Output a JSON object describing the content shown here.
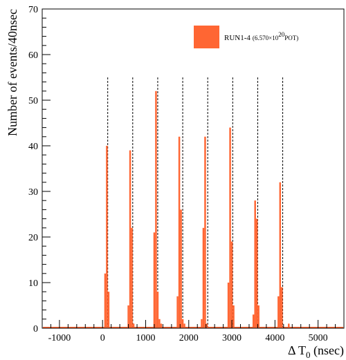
{
  "chart_data": {
    "type": "bar",
    "xlabel": "Δ T",
    "xlabel_sub": "0",
    "xlabel_unit": " (nsec)",
    "ylabel": "Number of events/40nsec",
    "xlim": [
      -1400,
      5600
    ],
    "ylim": [
      0,
      70
    ],
    "bin_width": 40,
    "x_ticks": [
      -1000,
      0,
      1000,
      2000,
      3000,
      4000,
      5000
    ],
    "y_ticks": [
      0,
      10,
      20,
      30,
      40,
      50,
      60,
      70
    ],
    "legend": {
      "position": "top-right",
      "label": "RUN1-4",
      "detail_prefix": "(6.570×10",
      "detail_exp": "20",
      "detail_suffix": "POT)"
    },
    "bar_color": "#ff6633",
    "bunch_centers": [
      120,
      700,
      1280,
      1860,
      2440,
      3020,
      3600,
      4180
    ],
    "bins": [
      {
        "x": 40,
        "count": 12
      },
      {
        "x": 80,
        "count": 40
      },
      {
        "x": 120,
        "count": 8
      },
      {
        "x": 580,
        "count": 5
      },
      {
        "x": 620,
        "count": 39
      },
      {
        "x": 660,
        "count": 22
      },
      {
        "x": 700,
        "count": 1
      },
      {
        "x": 1180,
        "count": 21
      },
      {
        "x": 1220,
        "count": 52
      },
      {
        "x": 1260,
        "count": 8
      },
      {
        "x": 1300,
        "count": 2
      },
      {
        "x": 1340,
        "count": 1
      },
      {
        "x": 1720,
        "count": 7
      },
      {
        "x": 1760,
        "count": 42
      },
      {
        "x": 1800,
        "count": 26
      },
      {
        "x": 1840,
        "count": 2
      },
      {
        "x": 1880,
        "count": 1
      },
      {
        "x": 2280,
        "count": 2
      },
      {
        "x": 2320,
        "count": 22
      },
      {
        "x": 2360,
        "count": 42
      },
      {
        "x": 2400,
        "count": 1
      },
      {
        "x": 2900,
        "count": 10
      },
      {
        "x": 2940,
        "count": 44
      },
      {
        "x": 2980,
        "count": 19
      },
      {
        "x": 3020,
        "count": 5
      },
      {
        "x": 3480,
        "count": 3
      },
      {
        "x": 3520,
        "count": 28
      },
      {
        "x": 3560,
        "count": 24
      },
      {
        "x": 3600,
        "count": 5
      },
      {
        "x": 4060,
        "count": 7
      },
      {
        "x": 4100,
        "count": 32
      },
      {
        "x": 4140,
        "count": 9
      },
      {
        "x": 4300,
        "count": 1
      }
    ]
  }
}
